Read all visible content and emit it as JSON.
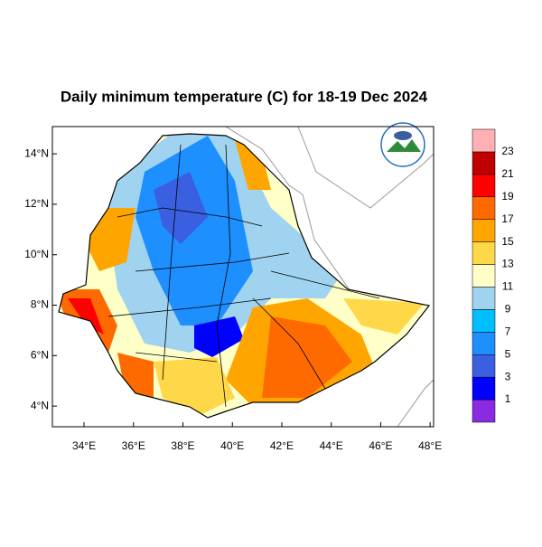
{
  "title": "Daily minimum temperature (C) for 18-19 Dec 2024",
  "map": {
    "xlim": [
      32.72,
      48.14
    ],
    "ylim": [
      3.18,
      15.08
    ],
    "xticks": [
      {
        "value": 34,
        "label": "34°E"
      },
      {
        "value": 36,
        "label": "36°E"
      },
      {
        "value": 38,
        "label": "38°E"
      },
      {
        "value": 40,
        "label": "40°E"
      },
      {
        "value": 42,
        "label": "42°E"
      },
      {
        "value": 44,
        "label": "44°E"
      },
      {
        "value": 46,
        "label": "46°E"
      },
      {
        "value": 48,
        "label": "48°E"
      }
    ],
    "yticks": [
      {
        "value": 4,
        "label": "4°N"
      },
      {
        "value": 6,
        "label": "6°N"
      },
      {
        "value": 8,
        "label": "8°N"
      },
      {
        "value": 10,
        "label": "10°N"
      },
      {
        "value": 12,
        "label": "12°N"
      },
      {
        "value": 14,
        "label": "14°N"
      }
    ]
  },
  "colorbar": {
    "levels": [
      1,
      3,
      5,
      7,
      9,
      11,
      13,
      15,
      17,
      19,
      21,
      23
    ],
    "colors": [
      "#8a2be2",
      "#0000ff",
      "#3a5fe0",
      "#1e8fff",
      "#00bfff",
      "#9fd3f0",
      "#ffffc8",
      "#ffd84a",
      "#ffa500",
      "#ff6a00",
      "#ff0000",
      "#c00000",
      "#ffb0b5"
    ]
  }
}
